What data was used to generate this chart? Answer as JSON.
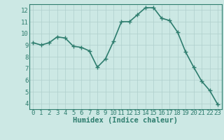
{
  "x": [
    0,
    1,
    2,
    3,
    4,
    5,
    6,
    7,
    8,
    9,
    10,
    11,
    12,
    13,
    14,
    15,
    16,
    17,
    18,
    19,
    20,
    21,
    22,
    23
  ],
  "y": [
    9.2,
    9.0,
    9.2,
    9.7,
    9.6,
    8.9,
    8.8,
    8.5,
    7.1,
    7.8,
    9.3,
    11.0,
    11.0,
    11.6,
    12.2,
    12.2,
    11.3,
    11.1,
    10.1,
    8.4,
    7.1,
    5.9,
    5.1,
    3.9
  ],
  "line_color": "#2e7d6e",
  "marker_color": "#2e7d6e",
  "bg_color": "#cce8e4",
  "grid_color": "#aecfcc",
  "axis_label_color": "#2e7d6e",
  "tick_color": "#2e7d6e",
  "xlabel": "Humidex (Indice chaleur)",
  "ylim": [
    3.5,
    12.5
  ],
  "xlim": [
    -0.5,
    23.5
  ],
  "yticks": [
    4,
    5,
    6,
    7,
    8,
    9,
    10,
    11,
    12
  ],
  "xticks": [
    0,
    1,
    2,
    3,
    4,
    5,
    6,
    7,
    8,
    9,
    10,
    11,
    12,
    13,
    14,
    15,
    16,
    17,
    18,
    19,
    20,
    21,
    22,
    23
  ],
  "marker_size": 4,
  "line_width": 1.2,
  "tick_fontsize": 6.5,
  "xlabel_fontsize": 7.5
}
